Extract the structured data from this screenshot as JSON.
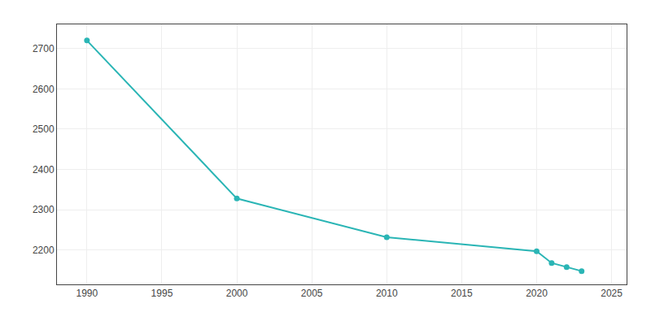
{
  "chart_data": {
    "type": "line",
    "x": [
      1990,
      2000,
      2010,
      2020,
      2021,
      2022,
      2023
    ],
    "values": [
      2720,
      2328,
      2232,
      2197,
      2168,
      2158,
      2148
    ],
    "color": "#2ab5b5",
    "marker": "circle",
    "line_style": "solid",
    "xlim": [
      1988,
      2026
    ],
    "ylim": [
      2115,
      2760
    ],
    "xticks": [
      1990,
      1995,
      2000,
      2005,
      2010,
      2015,
      2020,
      2025
    ],
    "yticks": [
      2200,
      2300,
      2400,
      2500,
      2600,
      2700
    ],
    "grid": true
  }
}
